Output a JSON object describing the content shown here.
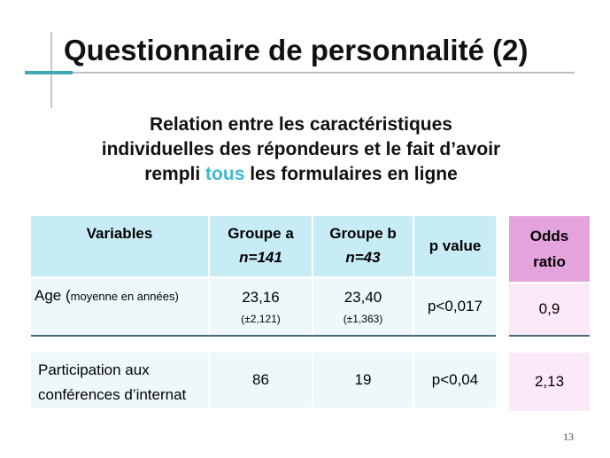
{
  "slide": {
    "title": "Questionnaire de personnalité (2)",
    "subtitle_line1": "Relation entre les caractéristiques",
    "subtitle_line2": "individuelles des répondeurs et le fait d’avoir",
    "subtitle_line3_a": "rempli ",
    "subtitle_line3_highlight": "tous",
    "subtitle_line3_b": " les formulaires en ligne",
    "page_number": "13"
  },
  "table": {
    "headers": {
      "variables": "Variables",
      "groupe_a": "Groupe a",
      "groupe_a_n": "n=141",
      "groupe_b": "Groupe b",
      "groupe_b_n": "n=43",
      "p_value": "p value",
      "odds_1": "Odds",
      "odds_2": "ratio"
    },
    "rows": [
      {
        "variable_main": "Age (",
        "variable_note": "moyenne en années)",
        "groupe_a": "23,16",
        "groupe_a_sd": "(±2,121)",
        "groupe_b": "23,40",
        "groupe_b_sd": "(±1,363)",
        "p_value": "p<0,017",
        "odds_ratio": "0,9"
      },
      {
        "variable_line1": "Participation aux",
        "variable_line2": "conférences d’internat",
        "groupe_a": "86",
        "groupe_b": "19",
        "p_value": "p<0,04",
        "odds_ratio": "2,13"
      }
    ]
  },
  "colors": {
    "header_bg": "#c8ecf5",
    "odds_header_bg": "#e4a3dc",
    "odds_body_bg": "#fbe9f8",
    "highlight": "#3fb8d6"
  }
}
